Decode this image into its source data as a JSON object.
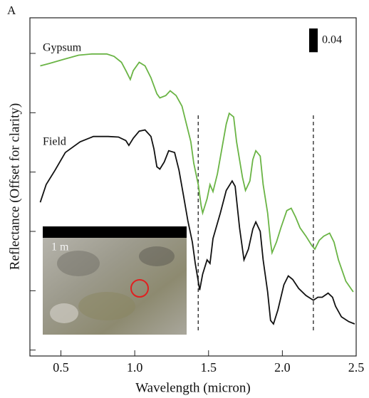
{
  "chart_data": {
    "type": "line",
    "panel_label": "A",
    "xlabel": "Wavelength (micron)",
    "ylabel": "Reflectance (Offset for clarity)",
    "xlim": [
      0.29,
      2.5
    ],
    "ylim": [
      -0.01,
      0.56
    ],
    "xticks": [
      0.5,
      {
        "value": 1,
        "label": "1.0"
      },
      1.5,
      {
        "value": 2,
        "label": "2.0"
      },
      2.5
    ],
    "yticks": [
      0,
      0.1,
      0.2,
      0.3,
      0.4,
      0.5
    ],
    "vlines": [
      1.43,
      2.21
    ],
    "scale_bar": {
      "value": 0.04,
      "label": "0.04"
    },
    "inset": {
      "scale_label": "1 m"
    },
    "series": [
      {
        "name": "Gypsum",
        "color": "#6ab445",
        "x": [
          0.36,
          0.42,
          0.52,
          0.62,
          0.71,
          0.81,
          0.86,
          0.91,
          0.94,
          0.97,
          0.99,
          1.03,
          1.07,
          1.11,
          1.15,
          1.17,
          1.21,
          1.24,
          1.28,
          1.32,
          1.35,
          1.38,
          1.4,
          1.43,
          1.45,
          1.46,
          1.49,
          1.51,
          1.53,
          1.56,
          1.59,
          1.62,
          1.64,
          1.67,
          1.69,
          1.73,
          1.75,
          1.78,
          1.8,
          1.82,
          1.85,
          1.87,
          1.9,
          1.92,
          1.93,
          1.96,
          1.99,
          2.03,
          2.06,
          2.09,
          2.12,
          2.16,
          2.2,
          2.22,
          2.25,
          2.28,
          2.32,
          2.35,
          2.38,
          2.43,
          2.48
        ],
        "values": [
          0.479,
          0.483,
          0.49,
          0.497,
          0.499,
          0.499,
          0.495,
          0.485,
          0.471,
          0.456,
          0.471,
          0.485,
          0.479,
          0.459,
          0.432,
          0.425,
          0.429,
          0.437,
          0.429,
          0.411,
          0.381,
          0.351,
          0.315,
          0.279,
          0.243,
          0.231,
          0.255,
          0.279,
          0.267,
          0.297,
          0.339,
          0.381,
          0.399,
          0.393,
          0.351,
          0.291,
          0.269,
          0.285,
          0.321,
          0.336,
          0.327,
          0.279,
          0.231,
          0.182,
          0.164,
          0.182,
          0.206,
          0.235,
          0.239,
          0.224,
          0.206,
          0.192,
          0.176,
          0.17,
          0.185,
          0.192,
          0.197,
          0.182,
          0.152,
          0.116,
          0.098
        ]
      },
      {
        "name": "Field",
        "color": "#111111",
        "x": [
          0.36,
          0.4,
          0.46,
          0.53,
          0.63,
          0.72,
          0.82,
          0.89,
          0.94,
          0.96,
          0.99,
          1.03,
          1.07,
          1.11,
          1.13,
          1.15,
          1.17,
          1.2,
          1.23,
          1.27,
          1.3,
          1.33,
          1.36,
          1.39,
          1.41,
          1.43,
          1.44,
          1.46,
          1.49,
          1.51,
          1.53,
          1.58,
          1.62,
          1.66,
          1.68,
          1.71,
          1.74,
          1.77,
          1.8,
          1.82,
          1.85,
          1.87,
          1.9,
          1.92,
          1.94,
          1.97,
          2.01,
          2.04,
          2.07,
          2.11,
          2.16,
          2.21,
          2.24,
          2.27,
          2.31,
          2.34,
          2.36,
          2.4,
          2.45,
          2.49
        ],
        "values": [
          0.249,
          0.279,
          0.303,
          0.333,
          0.351,
          0.36,
          0.36,
          0.359,
          0.353,
          0.345,
          0.357,
          0.369,
          0.371,
          0.36,
          0.339,
          0.309,
          0.305,
          0.317,
          0.336,
          0.333,
          0.303,
          0.261,
          0.218,
          0.182,
          0.146,
          0.116,
          0.101,
          0.128,
          0.152,
          0.146,
          0.188,
          0.231,
          0.269,
          0.285,
          0.276,
          0.206,
          0.152,
          0.17,
          0.204,
          0.216,
          0.2,
          0.152,
          0.098,
          0.05,
          0.044,
          0.068,
          0.11,
          0.125,
          0.119,
          0.104,
          0.092,
          0.084,
          0.089,
          0.089,
          0.096,
          0.089,
          0.074,
          0.056,
          0.048,
          0.044
        ]
      }
    ]
  }
}
